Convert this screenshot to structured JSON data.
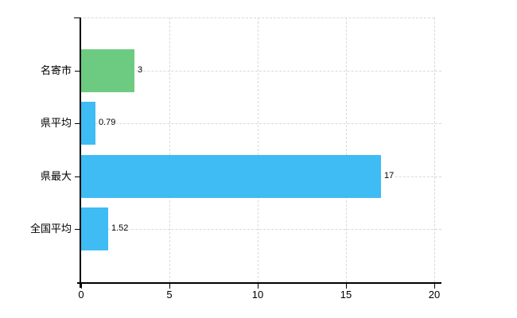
{
  "chart_data": {
    "type": "bar",
    "orientation": "horizontal",
    "title": "",
    "xlabel": "",
    "ylabel": "",
    "categories": [
      "名寄市",
      "県平均",
      "県最大",
      "全国平均"
    ],
    "values": [
      3,
      0.79,
      17,
      1.52
    ],
    "value_labels": [
      "3",
      "0.79",
      "17",
      "1.52"
    ],
    "bar_colors": [
      "#6ccb80",
      "#3ebcf3",
      "#3ebcf3",
      "#3ebcf3"
    ],
    "xlim": [
      0,
      20
    ],
    "xticks": [
      0,
      5,
      10,
      15,
      20
    ],
    "xtick_labels": [
      "0",
      "5",
      "10",
      "15",
      "20"
    ],
    "grid": "on",
    "legend": "none",
    "gridline_color": "#d9d9d9",
    "axis_color": "#000000",
    "text_color": "#000000",
    "background_color": "#ffffff"
  }
}
